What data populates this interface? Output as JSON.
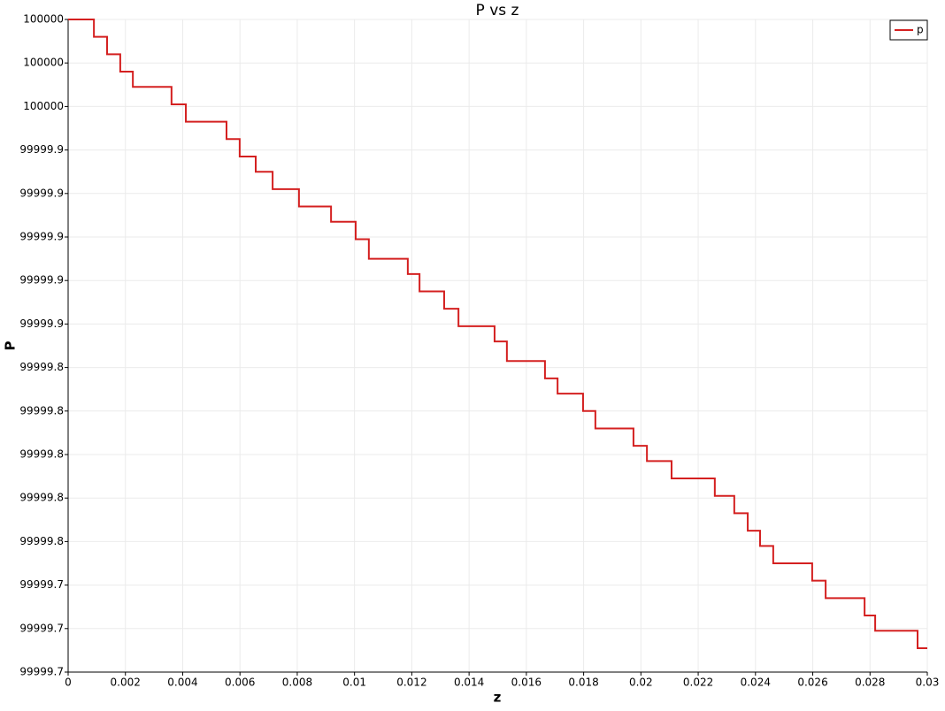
{
  "chart_data": {
    "type": "line",
    "title": "P vs z",
    "x_label": "z",
    "y_label": "P",
    "xlim": [
      0,
      0.03
    ],
    "xticks": [
      0,
      0.002,
      0.004,
      0.006,
      0.008,
      0.01,
      0.012,
      0.014,
      0.016,
      0.018,
      0.02,
      0.022,
      0.024,
      0.026,
      0.028,
      0.03
    ],
    "ylim": [
      99999.7,
      100000.0
    ],
    "yticks": [
      {
        "value": 100000.0,
        "label": "100000"
      },
      {
        "value": 99999.98,
        "label": "100000"
      },
      {
        "value": 99999.96,
        "label": "100000"
      },
      {
        "value": 99999.94,
        "label": "99999.9"
      },
      {
        "value": 99999.92,
        "label": "99999.9"
      },
      {
        "value": 99999.9,
        "label": "99999.9"
      },
      {
        "value": 99999.88,
        "label": "99999.9"
      },
      {
        "value": 99999.86,
        "label": "99999.9"
      },
      {
        "value": 99999.84,
        "label": "99999.8"
      },
      {
        "value": 99999.82,
        "label": "99999.8"
      },
      {
        "value": 99999.8,
        "label": "99999.8"
      },
      {
        "value": 99999.78,
        "label": "99999.8"
      },
      {
        "value": 99999.76,
        "label": "99999.8"
      },
      {
        "value": 99999.74,
        "label": "99999.7"
      },
      {
        "value": 99999.72,
        "label": "99999.7"
      },
      {
        "value": 99999.7,
        "label": "99999.7"
      }
    ],
    "grid": true,
    "legend_position": "top-right",
    "x": [
      0,
      0.0009,
      0.0009,
      0.00136,
      0.00136,
      0.00182,
      0.00182,
      0.00226,
      0.00226,
      0.00361,
      0.00361,
      0.00411,
      0.00411,
      0.00553,
      0.00553,
      0.00599,
      0.00599,
      0.00655,
      0.00655,
      0.00714,
      0.00714,
      0.00806,
      0.00806,
      0.00918,
      0.00918,
      0.01004,
      0.01004,
      0.0105,
      0.0105,
      0.01186,
      0.01186,
      0.01227,
      0.01227,
      0.01313,
      0.01313,
      0.01363,
      0.01363,
      0.01489,
      0.01489,
      0.01532,
      0.01532,
      0.01665,
      0.01665,
      0.01709,
      0.01709,
      0.01798,
      0.01798,
      0.01841,
      0.01841,
      0.01974,
      0.01974,
      0.02021,
      0.02021,
      0.02107,
      0.02107,
      0.02258,
      0.02258,
      0.02326,
      0.02326,
      0.02373,
      0.02373,
      0.02416,
      0.02416,
      0.02462,
      0.02462,
      0.02598,
      0.02598,
      0.02645,
      0.02645,
      0.02781,
      0.02781,
      0.02818,
      0.02818,
      0.02966,
      0.02966,
      0.03
    ],
    "series": [
      {
        "name": "p",
        "color": "#d42020",
        "values": [
          100000,
          100000,
          99999.992,
          99999.992,
          99999.984,
          99999.984,
          99999.976,
          99999.976,
          99999.969,
          99999.969,
          99999.961,
          99999.961,
          99999.953,
          99999.953,
          99999.945,
          99999.945,
          99999.937,
          99999.937,
          99999.93,
          99999.93,
          99999.922,
          99999.922,
          99999.914,
          99999.914,
          99999.907,
          99999.907,
          99999.899,
          99999.899,
          99999.89,
          99999.89,
          99999.883,
          99999.883,
          99999.875,
          99999.875,
          99999.867,
          99999.867,
          99999.859,
          99999.859,
          99999.852,
          99999.852,
          99999.843,
          99999.843,
          99999.835,
          99999.835,
          99999.828,
          99999.828,
          99999.82,
          99999.82,
          99999.812,
          99999.812,
          99999.804,
          99999.804,
          99999.797,
          99999.797,
          99999.789,
          99999.789,
          99999.781,
          99999.781,
          99999.773,
          99999.773,
          99999.765,
          99999.765,
          99999.758,
          99999.758,
          99999.75,
          99999.75,
          99999.742,
          99999.742,
          99999.734,
          99999.734,
          99999.726,
          99999.726,
          99999.719,
          99999.719,
          99999.711,
          99999.711
        ]
      }
    ]
  }
}
